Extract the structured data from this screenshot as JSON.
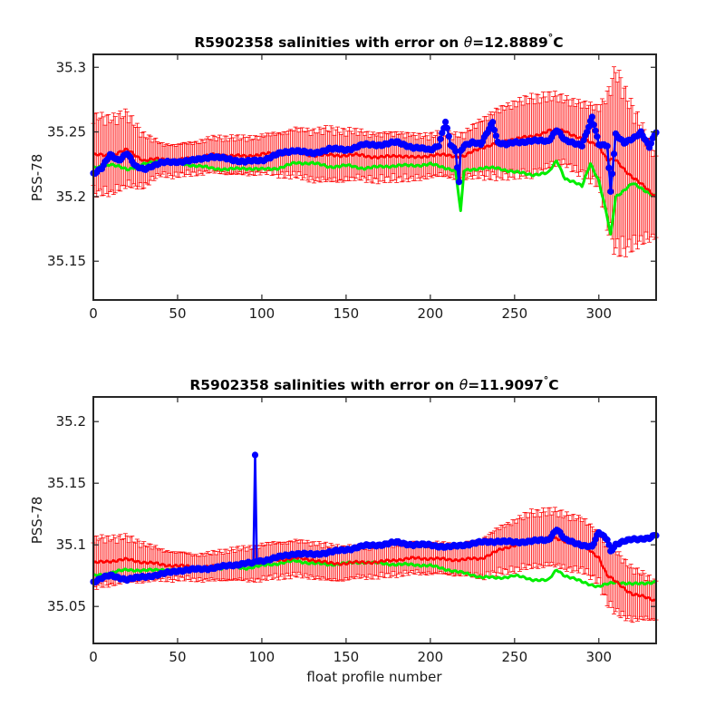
{
  "chart_data": [
    {
      "type": "line",
      "title": {
        "prefix": "R5902358 salinities with error on ",
        "theta": "θ",
        "value": "=12.8889",
        "degree": "°",
        "unit": "C"
      },
      "xlabel": "",
      "ylabel": "PSS-78",
      "xlim": [
        0,
        334
      ],
      "ylim": [
        35.12,
        35.31
      ],
      "xticks": [
        0,
        50,
        100,
        150,
        200,
        250,
        300
      ],
      "yticks": [
        35.15,
        35.2,
        35.25,
        35.3
      ],
      "xtick_labels": [
        "0",
        "50",
        "100",
        "150",
        "200",
        "250",
        "300"
      ],
      "ytick_labels": [
        "35.15",
        "35.2",
        "35.25",
        "35.3"
      ],
      "grid": false,
      "series": [
        {
          "role": "calibrated",
          "color": "#00ee00",
          "x": [
            0,
            10,
            20,
            30,
            40,
            50,
            60,
            70,
            80,
            90,
            100,
            110,
            120,
            130,
            140,
            150,
            160,
            170,
            180,
            190,
            200,
            210,
            215,
            218,
            220,
            230,
            240,
            250,
            260,
            270,
            275,
            280,
            290,
            295,
            300,
            305,
            307,
            310,
            320,
            334
          ],
          "y": [
            35.222,
            35.225,
            35.221,
            35.225,
            35.228,
            35.226,
            35.224,
            35.222,
            35.221,
            35.222,
            35.221,
            35.222,
            35.226,
            35.226,
            35.223,
            35.224,
            35.222,
            35.223,
            35.224,
            35.224,
            35.225,
            35.222,
            35.22,
            35.188,
            35.22,
            35.222,
            35.222,
            35.219,
            35.217,
            35.218,
            35.228,
            35.214,
            35.208,
            35.226,
            35.212,
            35.184,
            35.17,
            35.2,
            35.21,
            35.2
          ]
        },
        {
          "role": "mapped",
          "color": "#ff0000",
          "x": [
            0,
            10,
            20,
            30,
            40,
            50,
            60,
            70,
            80,
            90,
            100,
            110,
            120,
            130,
            140,
            150,
            160,
            170,
            180,
            190,
            200,
            210,
            220,
            230,
            240,
            250,
            260,
            270,
            280,
            290,
            300,
            305,
            310,
            320,
            334
          ],
          "y": [
            35.232,
            35.232,
            35.236,
            35.228,
            35.229,
            35.228,
            35.23,
            35.232,
            35.232,
            35.231,
            35.233,
            35.233,
            35.234,
            35.232,
            35.232,
            35.232,
            35.232,
            35.23,
            35.232,
            35.23,
            35.232,
            35.232,
            35.231,
            35.238,
            35.241,
            35.245,
            35.246,
            35.251,
            35.251,
            35.244,
            35.24,
            35.228,
            35.228,
            35.215,
            35.2
          ]
        },
        {
          "role": "mapped_error",
          "color": "#ff0000",
          "x": [
            0,
            20,
            40,
            60,
            80,
            100,
            120,
            140,
            160,
            180,
            200,
            220,
            240,
            260,
            280,
            300,
            310,
            334
          ],
          "y": [
            0.03,
            0.028,
            0.012,
            0.012,
            0.014,
            0.014,
            0.018,
            0.02,
            0.018,
            0.018,
            0.016,
            0.017,
            0.026,
            0.03,
            0.025,
            0.03,
            0.07,
            0.03
          ]
        },
        {
          "role": "float",
          "color": "#0000ff",
          "x": [
            0,
            5,
            10,
            15,
            20,
            25,
            30,
            35,
            40,
            50,
            60,
            70,
            80,
            90,
            100,
            110,
            120,
            130,
            140,
            150,
            160,
            170,
            180,
            190,
            200,
            205,
            209,
            212,
            215,
            217,
            218,
            220,
            225,
            230,
            237,
            240,
            245,
            250,
            260,
            270,
            275,
            280,
            290,
            296,
            300,
            305,
            307,
            310,
            315,
            320,
            325,
            330,
            334
          ],
          "y": [
            35.218,
            35.222,
            35.232,
            35.228,
            35.234,
            35.223,
            35.221,
            35.224,
            35.226,
            35.227,
            35.228,
            35.231,
            35.229,
            35.227,
            35.228,
            35.233,
            35.236,
            35.233,
            35.237,
            35.236,
            35.24,
            35.24,
            35.242,
            35.238,
            35.236,
            35.24,
            35.258,
            35.24,
            35.235,
            35.211,
            35.235,
            35.24,
            35.242,
            35.24,
            35.258,
            35.242,
            35.24,
            35.242,
            35.243,
            35.243,
            35.252,
            35.243,
            35.24,
            35.261,
            35.24,
            35.24,
            35.204,
            35.248,
            35.241,
            35.245,
            35.25,
            35.238,
            35.25
          ]
        }
      ]
    },
    {
      "type": "line",
      "title": {
        "prefix": "R5902358 salinities with error on ",
        "theta": "θ",
        "value": "=11.9097",
        "degree": "°",
        "unit": "C"
      },
      "xlabel": "float profile number",
      "ylabel": "PSS-78",
      "xlim": [
        0,
        334
      ],
      "ylim": [
        35.02,
        35.22
      ],
      "xticks": [
        0,
        50,
        100,
        150,
        200,
        250,
        300
      ],
      "yticks": [
        35.05,
        35.1,
        35.15,
        35.2
      ],
      "xtick_labels": [
        "0",
        "50",
        "100",
        "150",
        "200",
        "250",
        "300"
      ],
      "ytick_labels": [
        "35.05",
        "35.1",
        "35.15",
        "35.2"
      ],
      "grid": false,
      "series": [
        {
          "role": "calibrated",
          "color": "#00ee00",
          "x": [
            0,
            10,
            20,
            30,
            40,
            50,
            60,
            70,
            80,
            90,
            100,
            110,
            120,
            130,
            140,
            150,
            160,
            170,
            180,
            190,
            200,
            210,
            220,
            230,
            240,
            250,
            260,
            270,
            275,
            280,
            290,
            300,
            310,
            320,
            334
          ],
          "y": [
            35.075,
            35.077,
            35.08,
            35.079,
            35.08,
            35.079,
            35.081,
            35.08,
            35.082,
            35.081,
            35.083,
            35.085,
            35.087,
            35.085,
            35.084,
            35.085,
            35.086,
            35.085,
            35.084,
            35.084,
            35.083,
            35.08,
            35.077,
            35.074,
            35.073,
            35.075,
            35.072,
            35.071,
            35.08,
            35.075,
            35.07,
            35.066,
            35.07,
            35.068,
            35.07
          ]
        },
        {
          "role": "mapped",
          "color": "#ff0000",
          "x": [
            0,
            10,
            20,
            30,
            40,
            50,
            60,
            70,
            80,
            90,
            100,
            110,
            120,
            130,
            140,
            150,
            160,
            170,
            180,
            190,
            200,
            210,
            220,
            230,
            240,
            250,
            260,
            270,
            280,
            290,
            300,
            305,
            310,
            320,
            334
          ],
          "y": [
            35.085,
            35.087,
            35.088,
            35.086,
            35.084,
            35.083,
            35.082,
            35.082,
            35.084,
            35.084,
            35.086,
            35.088,
            35.089,
            35.088,
            35.085,
            35.085,
            35.086,
            35.086,
            35.088,
            35.089,
            35.089,
            35.088,
            35.088,
            35.089,
            35.095,
            35.1,
            35.104,
            35.106,
            35.103,
            35.1,
            35.09,
            35.075,
            35.07,
            35.06,
            35.055
          ]
        },
        {
          "role": "mapped_error",
          "color": "#ff0000",
          "x": [
            0,
            20,
            40,
            60,
            80,
            100,
            120,
            140,
            160,
            180,
            200,
            220,
            240,
            260,
            280,
            300,
            310,
            334
          ],
          "y": [
            0.02,
            0.018,
            0.012,
            0.01,
            0.012,
            0.014,
            0.014,
            0.014,
            0.012,
            0.012,
            0.012,
            0.012,
            0.018,
            0.022,
            0.022,
            0.02,
            0.025,
            0.015
          ]
        },
        {
          "role": "float",
          "color": "#0000ff",
          "x": [
            0,
            5,
            10,
            20,
            30,
            40,
            50,
            60,
            70,
            80,
            90,
            95,
            96,
            97,
            100,
            110,
            120,
            130,
            140,
            150,
            160,
            170,
            180,
            190,
            200,
            210,
            220,
            230,
            240,
            250,
            260,
            270,
            275,
            280,
            290,
            296,
            300,
            305,
            307,
            310,
            320,
            330,
            334
          ],
          "y": [
            35.07,
            35.073,
            35.075,
            35.072,
            35.074,
            35.076,
            35.079,
            35.08,
            35.081,
            35.083,
            35.085,
            35.085,
            35.172,
            35.087,
            35.087,
            35.09,
            35.093,
            35.092,
            35.094,
            35.096,
            35.099,
            35.1,
            35.102,
            35.1,
            35.1,
            35.098,
            35.1,
            35.102,
            35.103,
            35.102,
            35.103,
            35.104,
            35.113,
            35.104,
            35.1,
            35.098,
            35.11,
            35.105,
            35.095,
            35.1,
            35.105,
            35.105,
            35.108
          ]
        }
      ]
    }
  ]
}
